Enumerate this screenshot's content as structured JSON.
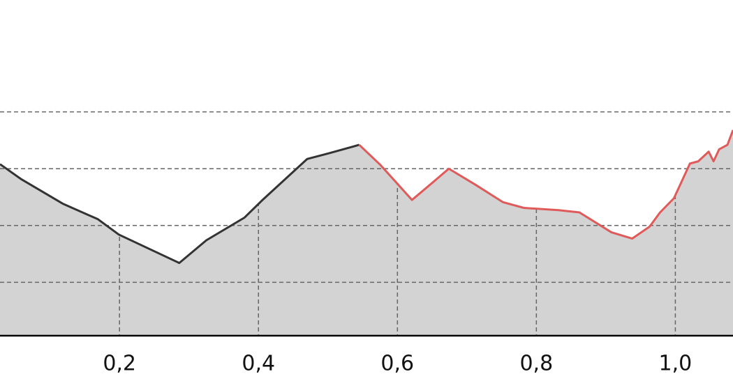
{
  "chart_data": {
    "type": "area",
    "xlim": [
      0.028,
      1.083
    ],
    "xticks": [
      {
        "value": 0.2,
        "label": "0,2"
      },
      {
        "value": 0.4,
        "label": "0,4"
      },
      {
        "value": 0.6,
        "label": "0,6"
      },
      {
        "value": 0.8,
        "label": "0,8"
      },
      {
        "value": 1.0,
        "label": "1,0"
      }
    ],
    "ylim": [
      0.06,
      5.97
    ],
    "yticks": [
      1,
      2,
      3,
      4
    ],
    "grid": true,
    "fill": "#d3d3d3",
    "series": [
      {
        "color": "#333333",
        "x": [
          0.028,
          0.058,
          0.119,
          0.169,
          0.199,
          0.286,
          0.325,
          0.38,
          0.405,
          0.47,
          0.501,
          0.545
        ],
        "values": [
          3.08,
          2.82,
          2.38,
          2.11,
          1.84,
          1.34,
          1.74,
          2.14,
          2.44,
          3.17,
          3.27,
          3.42
        ]
      },
      {
        "color": "#e05a5a",
        "x": [
          0.545,
          0.576,
          0.621,
          0.651,
          0.674,
          0.712,
          0.752,
          0.782,
          0.832,
          0.862,
          0.908,
          0.938,
          0.963,
          0.978,
          0.998,
          1.021,
          1.033,
          1.048,
          1.055,
          1.063,
          1.075,
          1.083
        ],
        "values": [
          3.42,
          3.06,
          2.45,
          2.76,
          3.0,
          2.72,
          2.41,
          2.31,
          2.27,
          2.23,
          1.88,
          1.77,
          1.98,
          2.23,
          2.48,
          3.09,
          3.13,
          3.3,
          3.13,
          3.34,
          3.42,
          3.68
        ]
      }
    ]
  }
}
